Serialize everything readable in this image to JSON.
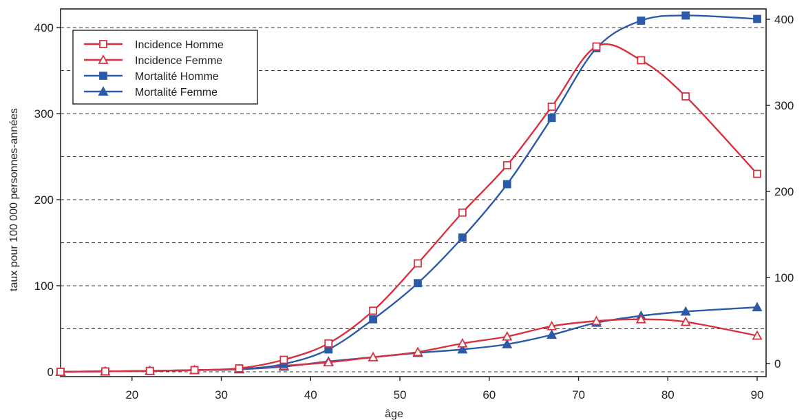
{
  "chart_data": {
    "type": "line",
    "title": "",
    "xlabel": "âge",
    "ylabel": "taux pour 100 000 personnes-années",
    "xlim": [
      12,
      91
    ],
    "ylim": [
      0,
      420
    ],
    "x_ticks": [
      20,
      30,
      40,
      50,
      60,
      70,
      80,
      90
    ],
    "y_ticks_left": [
      0,
      100,
      200,
      300,
      400
    ],
    "y_ticks_right": [
      0,
      100,
      200,
      300,
      400
    ],
    "grid": "horizontal dashed",
    "legend_position": "top-left",
    "series": [
      {
        "name": "Incidence Homme",
        "color": "#d93040",
        "marker": "open-square",
        "x": [
          12,
          17,
          22,
          27,
          32,
          37,
          42,
          47,
          52,
          57,
          62,
          67,
          72,
          77,
          82,
          90
        ],
        "y": [
          0,
          0.5,
          1,
          2,
          4,
          14,
          33,
          71,
          126,
          185,
          240,
          308,
          378,
          362,
          320,
          230
        ]
      },
      {
        "name": "Incidence Femme",
        "color": "#d93040",
        "marker": "open-triangle",
        "x": [
          12,
          17,
          22,
          27,
          32,
          37,
          42,
          47,
          52,
          57,
          62,
          67,
          72,
          77,
          82,
          90
        ],
        "y": [
          0,
          0.5,
          1,
          2,
          3,
          7,
          11,
          17,
          23,
          33,
          41,
          53,
          59,
          61,
          58,
          42
        ]
      },
      {
        "name": "Mortalité Homme",
        "color": "#2a5aa8",
        "marker": "filled-square",
        "x": [
          12,
          17,
          22,
          27,
          32,
          37,
          42,
          47,
          52,
          57,
          62,
          67,
          72,
          77,
          82,
          90
        ],
        "y": [
          0,
          0.5,
          1,
          2,
          3,
          9,
          26,
          61,
          103,
          156,
          218,
          295,
          376,
          408,
          414,
          410
        ]
      },
      {
        "name": "Mortalité Femme",
        "color": "#2a5aa8",
        "marker": "filled-triangle",
        "x": [
          12,
          17,
          22,
          27,
          32,
          37,
          42,
          47,
          52,
          57,
          62,
          67,
          72,
          77,
          82,
          90
        ],
        "y": [
          0,
          0.5,
          1,
          2,
          3,
          6,
          12,
          17,
          22,
          26,
          32,
          43,
          57,
          65,
          70,
          75
        ]
      }
    ]
  }
}
